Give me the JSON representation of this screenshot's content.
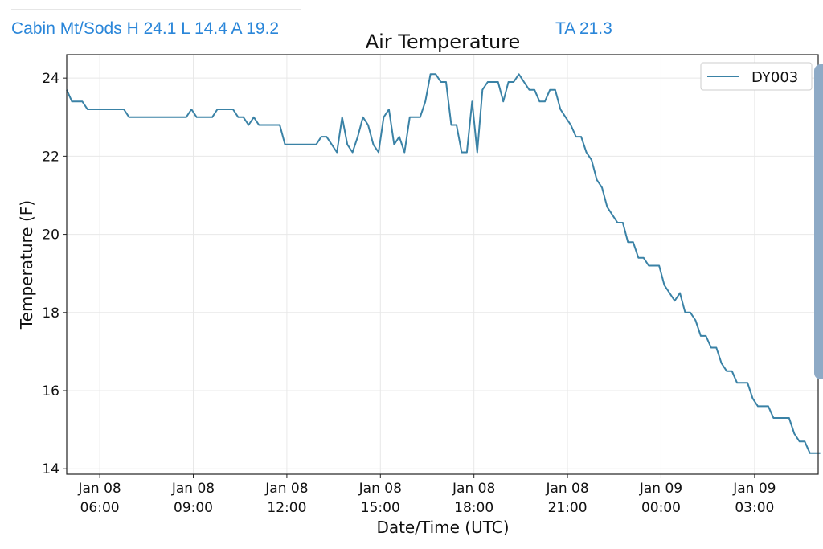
{
  "header": {
    "station_summary": "Cabin Mt/Sods H 24.1 L 14.4 A 19.2",
    "ta": "TA 21.3"
  },
  "colors": {
    "series": "#3a82a6",
    "header_text": "#2a86d9",
    "scrollbar": "#8eaac6"
  },
  "chart_data": {
    "type": "line",
    "title": "Air Temperature",
    "xlabel": "Date/Time (UTC)",
    "ylabel": "Temperature (F)",
    "x_units": "hours since Jan 08 00:00 UTC",
    "xlim": [
      4.94,
      29.04
    ],
    "ylim": [
      13.86,
      24.6
    ],
    "grid": true,
    "legend_position": "top-right",
    "yticks": [
      14,
      16,
      18,
      20,
      22,
      24
    ],
    "xticks": [
      {
        "value": 6,
        "line1": "Jan 08",
        "line2": "06:00"
      },
      {
        "value": 9,
        "line1": "Jan 08",
        "line2": "09:00"
      },
      {
        "value": 12,
        "line1": "Jan 08",
        "line2": "12:00"
      },
      {
        "value": 15,
        "line1": "Jan 08",
        "line2": "15:00"
      },
      {
        "value": 18,
        "line1": "Jan 08",
        "line2": "18:00"
      },
      {
        "value": 21,
        "line1": "Jan 08",
        "line2": "21:00"
      },
      {
        "value": 24,
        "line1": "Jan 09",
        "line2": "00:00"
      },
      {
        "value": 27,
        "line1": "Jan 09",
        "line2": "03:00"
      }
    ],
    "series": [
      {
        "name": "DY003",
        "start_hour": 4.94,
        "interval_minutes": 10,
        "values": [
          23.7,
          23.4,
          23.4,
          23.4,
          23.2,
          23.2,
          23.2,
          23.2,
          23.2,
          23.2,
          23.2,
          23.2,
          23.0,
          23.0,
          23.0,
          23.0,
          23.0,
          23.0,
          23.0,
          23.0,
          23.0,
          23.0,
          23.0,
          23.0,
          23.2,
          23.0,
          23.0,
          23.0,
          23.0,
          23.2,
          23.2,
          23.2,
          23.2,
          23.0,
          23.0,
          22.8,
          23.0,
          22.8,
          22.8,
          22.8,
          22.8,
          22.8,
          22.3,
          22.3,
          22.3,
          22.3,
          22.3,
          22.3,
          22.3,
          22.5,
          22.5,
          22.3,
          22.1,
          23.0,
          22.3,
          22.1,
          22.5,
          23.0,
          22.8,
          22.3,
          22.1,
          23.0,
          23.2,
          22.3,
          22.5,
          22.1,
          23.0,
          23.0,
          23.0,
          23.4,
          24.1,
          24.1,
          23.9,
          23.9,
          22.8,
          22.8,
          22.1,
          22.1,
          23.4,
          22.1,
          23.7,
          23.9,
          23.9,
          23.9,
          23.4,
          23.9,
          23.9,
          24.1,
          23.9,
          23.7,
          23.7,
          23.4,
          23.4,
          23.7,
          23.7,
          23.2,
          23.0,
          22.8,
          22.5,
          22.5,
          22.1,
          21.9,
          21.4,
          21.2,
          20.7,
          20.5,
          20.3,
          20.3,
          19.8,
          19.8,
          19.4,
          19.4,
          19.2,
          19.2,
          19.2,
          18.7,
          18.5,
          18.3,
          18.5,
          18.0,
          18.0,
          17.8,
          17.4,
          17.4,
          17.1,
          17.1,
          16.7,
          16.5,
          16.5,
          16.2,
          16.2,
          16.2,
          15.8,
          15.6,
          15.6,
          15.6,
          15.3,
          15.3,
          15.3,
          15.3,
          14.9,
          14.7,
          14.7,
          14.4,
          14.4,
          14.4
        ]
      }
    ]
  }
}
